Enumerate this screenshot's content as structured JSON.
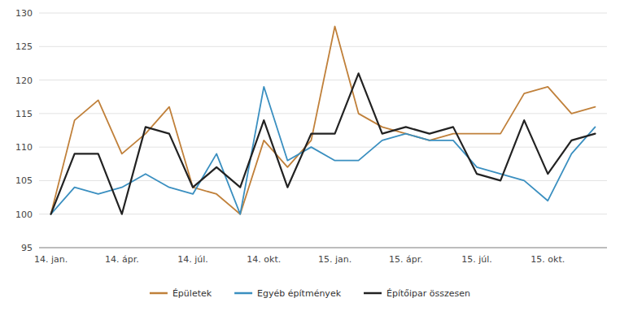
{
  "chart_data": {
    "type": "line",
    "categories": [
      "14. jan.",
      null,
      null,
      "14. ápr.",
      null,
      null,
      "14. júl.",
      null,
      null,
      "14. okt.",
      null,
      null,
      "15. jan.",
      null,
      null,
      "15. ápr.",
      null,
      null,
      "15. júl.",
      null,
      null,
      "15. okt.",
      null,
      null
    ],
    "series": [
      {
        "name": "Épületek",
        "color": "#c0803a",
        "values": [
          100,
          114,
          117,
          109,
          112,
          116,
          104,
          103,
          100,
          111,
          107,
          111,
          128,
          115,
          113,
          112,
          111,
          112,
          112,
          112,
          118,
          119,
          115,
          116
        ]
      },
      {
        "name": "Egyéb építmények",
        "color": "#3a8fc0",
        "values": [
          100,
          104,
          103,
          104,
          106,
          104,
          103,
          109,
          100,
          119,
          108,
          110,
          108,
          108,
          111,
          112,
          111,
          111,
          107,
          106,
          105,
          102,
          109,
          113
        ]
      },
      {
        "name": "Építőipar összesen",
        "color": "#222222",
        "values": [
          100,
          109,
          109,
          100,
          113,
          112,
          104,
          107,
          104,
          114,
          104,
          112,
          112,
          121,
          112,
          113,
          112,
          113,
          106,
          105,
          114,
          106,
          111,
          112
        ]
      }
    ],
    "ylim": [
      95,
      130
    ],
    "yticks": [
      95,
      100,
      105,
      110,
      115,
      120,
      125,
      130
    ],
    "grid": true,
    "legend": "bottom"
  }
}
